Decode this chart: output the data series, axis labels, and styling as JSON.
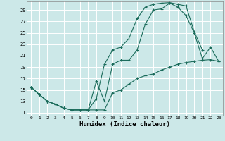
{
  "xlabel": "Humidex (Indice chaleur)",
  "background_color": "#cce8e8",
  "grid_color": "#aacccc",
  "line_color": "#1a6b5a",
  "xlim": [
    -0.5,
    23.5
  ],
  "ylim": [
    10.5,
    30.5
  ],
  "xticks": [
    0,
    1,
    2,
    3,
    4,
    5,
    6,
    7,
    8,
    9,
    10,
    11,
    12,
    13,
    14,
    15,
    16,
    17,
    18,
    19,
    20,
    21,
    22,
    23
  ],
  "yticks": [
    11,
    13,
    15,
    17,
    19,
    21,
    23,
    25,
    27,
    29
  ],
  "curve1_x": [
    0,
    1,
    2,
    3,
    4,
    5,
    6,
    7,
    8,
    9,
    10,
    11,
    12,
    13,
    14,
    15,
    16,
    17,
    18,
    19,
    20,
    21
  ],
  "curve1_y": [
    15.5,
    14.2,
    13.0,
    12.5,
    11.8,
    11.5,
    11.5,
    11.5,
    13.5,
    19.5,
    22.0,
    22.5,
    24.0,
    27.5,
    29.5,
    30.0,
    30.2,
    30.3,
    30.0,
    29.7,
    25.2,
    22.0
  ],
  "curve2_x": [
    0,
    1,
    2,
    3,
    4,
    5,
    6,
    7,
    8,
    9,
    10,
    11,
    12,
    13,
    14,
    15,
    16,
    17,
    18,
    19,
    20,
    21,
    22,
    23
  ],
  "curve2_y": [
    15.5,
    14.2,
    13.0,
    12.5,
    11.8,
    11.5,
    11.5,
    11.5,
    16.5,
    13.0,
    19.5,
    20.2,
    20.2,
    22.0,
    26.5,
    29.0,
    29.2,
    30.2,
    29.5,
    28.0,
    25.0,
    20.5,
    22.5,
    20.0
  ],
  "curve3_x": [
    0,
    1,
    2,
    3,
    4,
    5,
    6,
    7,
    8,
    9,
    10,
    11,
    12,
    13,
    14,
    15,
    16,
    17,
    18,
    19,
    20,
    21,
    22,
    23
  ],
  "curve3_y": [
    15.5,
    14.2,
    13.0,
    12.5,
    11.8,
    11.5,
    11.5,
    11.5,
    11.5,
    11.5,
    14.5,
    15.0,
    16.0,
    17.0,
    17.5,
    17.8,
    18.5,
    19.0,
    19.5,
    19.8,
    20.0,
    20.2,
    20.3,
    20.0
  ]
}
